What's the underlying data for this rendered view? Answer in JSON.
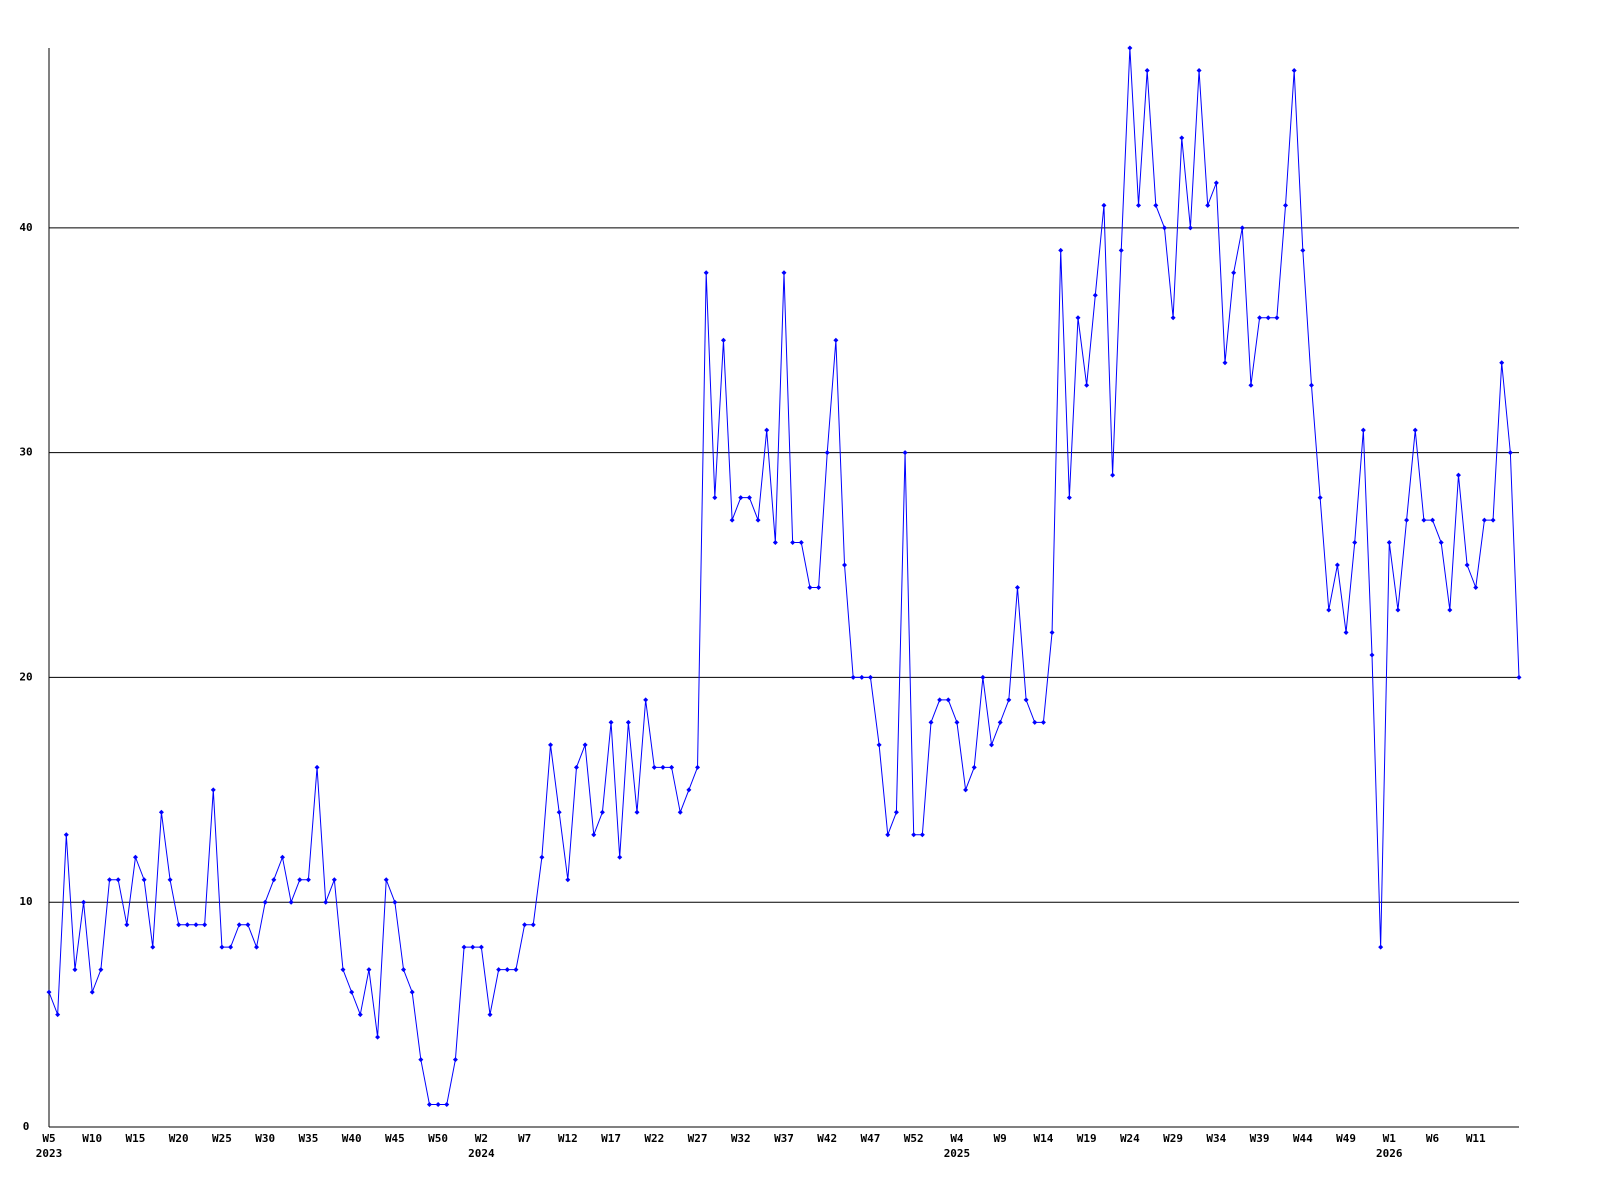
{
  "chart_data": {
    "type": "line",
    "categories": [
      "W5",
      null,
      null,
      null,
      null,
      "W10",
      null,
      null,
      null,
      null,
      "W15",
      null,
      null,
      null,
      null,
      "W20",
      null,
      null,
      null,
      null,
      "W25",
      null,
      null,
      null,
      null,
      "W30",
      null,
      null,
      null,
      null,
      "W35",
      null,
      null,
      null,
      null,
      "W40",
      null,
      null,
      null,
      null,
      "W45",
      null,
      null,
      null,
      null,
      "W50",
      null,
      null,
      null,
      null,
      "W2",
      null,
      null,
      null,
      null,
      "W7",
      null,
      null,
      null,
      null,
      "W12",
      null,
      null,
      null,
      null,
      "W17",
      null,
      null,
      null,
      null,
      "W22",
      null,
      null,
      null,
      null,
      "W27",
      null,
      null,
      null,
      null,
      "W32",
      null,
      null,
      null,
      null,
      "W37",
      null,
      null,
      null,
      null,
      "W42",
      null,
      null,
      null,
      null,
      "W47",
      null,
      null,
      null,
      null,
      "W52",
      null,
      null,
      null,
      null,
      "W4",
      null,
      null,
      null,
      null,
      "W9",
      null,
      null,
      null,
      null,
      "W14",
      null,
      null,
      null,
      null,
      "W19",
      null,
      null,
      null,
      null,
      "W24",
      null,
      null,
      null,
      null,
      "W29",
      null,
      null,
      null,
      null,
      "W34",
      null,
      null,
      null,
      null,
      "W39",
      null,
      null,
      null,
      null,
      "W44",
      null,
      null,
      null,
      null,
      "W49",
      null,
      null,
      null,
      null,
      "W1",
      null,
      null,
      null,
      null,
      "W6",
      null,
      null,
      null,
      null,
      "W11",
      null,
      null,
      null,
      null,
      null
    ],
    "category_years": [
      "2023",
      null,
      null,
      null,
      null,
      null,
      null,
      null,
      null,
      null,
      null,
      null,
      null,
      null,
      null,
      null,
      null,
      null,
      null,
      null,
      null,
      null,
      null,
      null,
      null,
      null,
      null,
      null,
      null,
      null,
      null,
      null,
      null,
      null,
      null,
      null,
      null,
      null,
      null,
      null,
      null,
      null,
      null,
      null,
      null,
      null,
      null,
      null,
      null,
      null,
      "2024",
      null,
      null,
      null,
      null,
      null,
      null,
      null,
      null,
      null,
      null,
      null,
      null,
      null,
      null,
      null,
      null,
      null,
      null,
      null,
      null,
      null,
      null,
      null,
      null,
      null,
      null,
      null,
      null,
      null,
      null,
      null,
      null,
      null,
      null,
      null,
      null,
      null,
      null,
      null,
      null,
      null,
      null,
      null,
      null,
      null,
      null,
      null,
      null,
      null,
      null,
      null,
      null,
      null,
      null,
      "2025",
      null,
      null,
      null,
      null,
      null,
      null,
      null,
      null,
      null,
      null,
      null,
      null,
      null,
      null,
      null,
      null,
      null,
      null,
      null,
      null,
      null,
      null,
      null,
      null,
      null,
      null,
      null,
      null,
      null,
      null,
      null,
      null,
      null,
      null,
      null,
      null,
      null,
      null,
      null,
      null,
      null,
      null,
      null,
      null,
      null,
      null,
      null,
      null,
      null,
      "2026",
      null,
      null,
      null,
      null,
      null,
      null,
      null,
      null,
      null,
      null,
      null,
      null,
      null,
      null,
      null
    ],
    "series": [
      {
        "color": "#0000ff",
        "values": [
          6,
          5,
          13,
          7,
          10,
          6,
          7,
          11,
          11,
          9,
          12,
          11,
          8,
          14,
          11,
          9,
          9,
          9,
          9,
          15,
          8,
          8,
          9,
          9,
          8,
          10,
          11,
          12,
          10,
          11,
          11,
          16,
          10,
          11,
          7,
          6,
          5,
          7,
          4,
          11,
          10,
          7,
          6,
          3,
          1,
          1,
          1,
          3,
          8,
          8,
          8,
          5,
          7,
          7,
          7,
          9,
          9,
          12,
          17,
          14,
          11,
          16,
          17,
          13,
          14,
          18,
          12,
          18,
          14,
          19,
          16,
          16,
          16,
          14,
          15,
          16,
          38,
          28,
          35,
          27,
          28,
          28,
          27,
          31,
          26,
          38,
          26,
          26,
          24,
          24,
          30,
          35,
          25,
          20,
          20,
          20,
          17,
          13,
          14,
          30,
          13,
          13,
          18,
          19,
          19,
          18,
          15,
          16,
          20,
          17,
          18,
          19,
          24,
          19,
          18,
          18,
          22,
          39,
          28,
          36,
          33,
          37,
          41,
          29,
          39,
          48,
          41,
          47,
          41,
          40,
          36,
          44,
          40,
          47,
          41,
          42,
          34,
          38,
          40,
          33,
          36,
          36,
          36,
          41,
          47,
          39,
          33,
          28,
          23,
          25,
          22,
          26,
          31,
          21,
          8,
          26,
          23,
          27,
          31,
          27,
          27,
          26,
          23,
          29,
          25,
          24,
          27,
          27,
          34,
          30,
          20
        ]
      }
    ],
    "ylim": [
      0,
      48
    ],
    "yticks": [
      0,
      10,
      20,
      30,
      40
    ],
    "grid": true
  }
}
